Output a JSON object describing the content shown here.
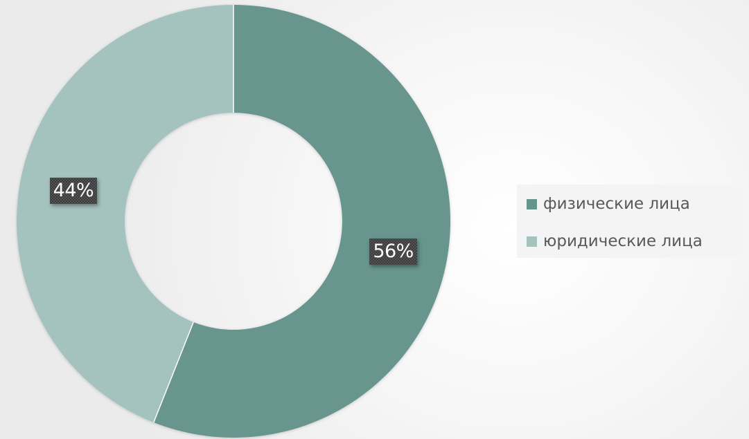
{
  "chart_data": {
    "type": "pie",
    "variant": "donut",
    "categories": [
      "физические лица",
      "юридические лица"
    ],
    "values": [
      56,
      44
    ],
    "data_labels": [
      "56%",
      "44%"
    ],
    "colors": [
      "#67958e",
      "#a4c2be"
    ],
    "title": "",
    "legend_position": "right"
  }
}
